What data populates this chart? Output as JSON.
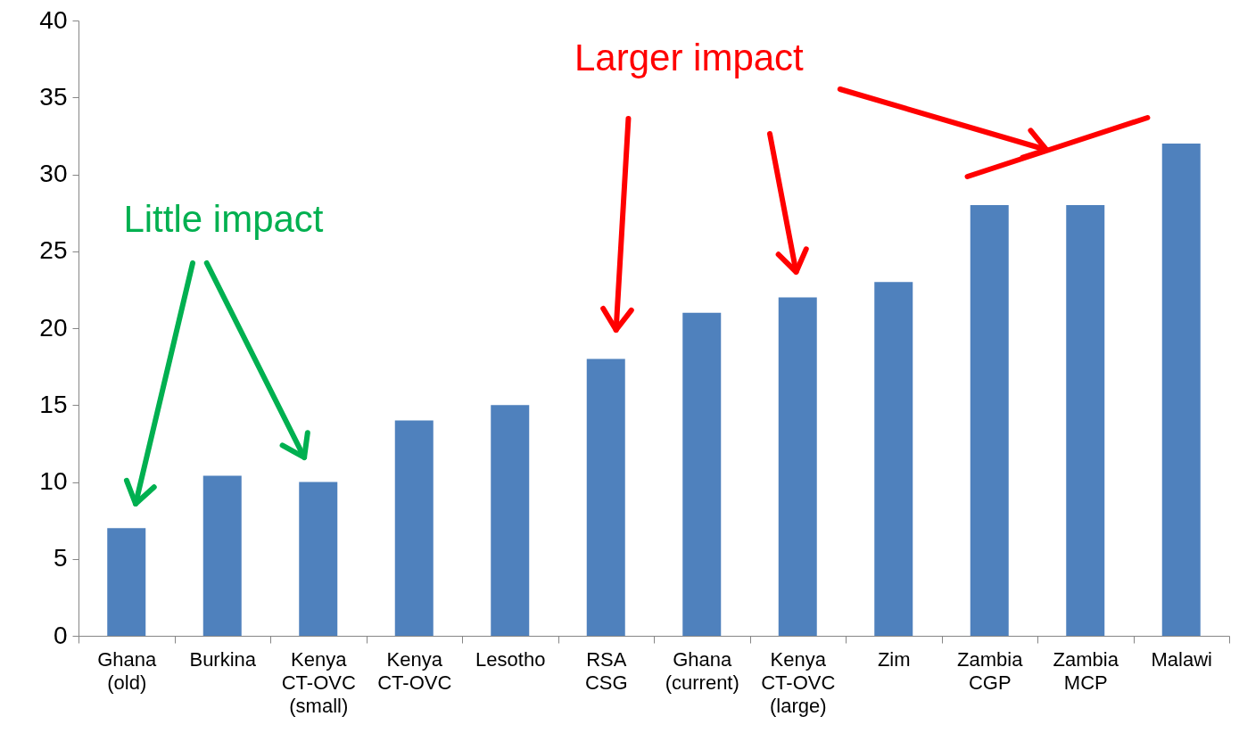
{
  "chart_data": {
    "type": "bar",
    "categories": [
      "Ghana (old)",
      "Burkina",
      "Kenya CT-OVC (small)",
      "Kenya CT-OVC",
      "Lesotho",
      "RSA CSG",
      "Ghana (current)",
      "Kenya CT-OVC (large)",
      "Zim",
      "Zambia CGP",
      "Zambia MCP",
      "Malawi"
    ],
    "values": [
      7,
      10.4,
      10,
      14,
      15,
      18,
      21,
      22,
      23,
      28,
      28,
      32
    ],
    "color": "#4f81bd",
    "ylim": [
      0,
      40
    ],
    "yticks": [
      0,
      5,
      10,
      15,
      20,
      25,
      30,
      35,
      40
    ],
    "grid": false,
    "annotations": [
      "Little impact",
      "Larger impact"
    ]
  }
}
